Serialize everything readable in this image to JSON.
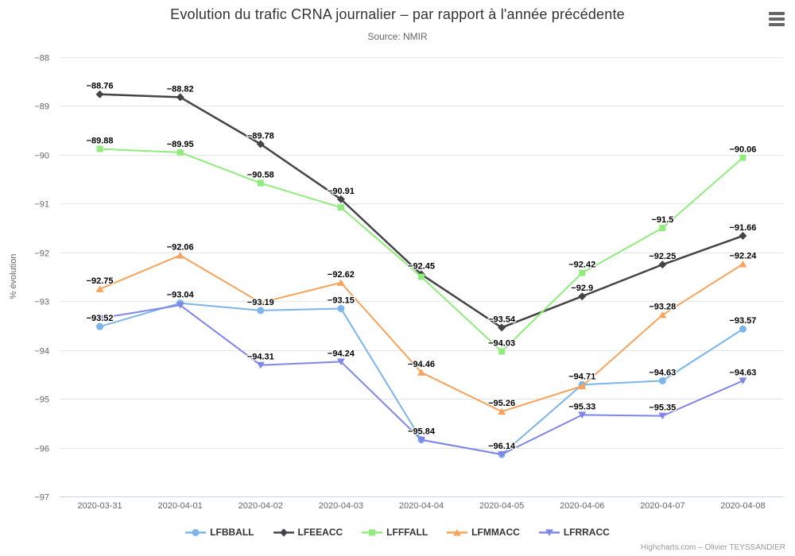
{
  "header": {
    "title": "Evolution du trafic CRNA journalier – par rapport à l'année précédente",
    "subtitle": "Source: NMIR"
  },
  "menu": {
    "icon": "hamburger-menu-icon"
  },
  "credit": {
    "text": "Highcharts.com – Olivier TEYSSANDIER"
  },
  "chart_data": {
    "type": "line",
    "title": "Evolution du trafic CRNA journalier – par rapport à l'année précédente",
    "subtitle": "Source: NMIR",
    "xlabel": "",
    "ylabel": "% évolution",
    "ylim": [
      -97,
      -88
    ],
    "yticks": [
      -88,
      -89,
      -90,
      -91,
      -92,
      -93,
      -94,
      -95,
      -96,
      -97
    ],
    "ytick_labels": [
      "−88",
      "−89",
      "−90",
      "−91",
      "−92",
      "−93",
      "−94",
      "−95",
      "−96",
      "−97"
    ],
    "grid": "horizontal",
    "grid_color": "#e6e6e6",
    "axis_line_color": "#ccd6eb",
    "axis_label_color": "#666666",
    "legend_position": "bottom",
    "x": [
      "2020-03-31",
      "2020-04-01",
      "2020-04-02",
      "2020-04-03",
      "2020-04-04",
      "2020-04-05",
      "2020-04-06",
      "2020-04-07",
      "2020-04-08"
    ],
    "series": [
      {
        "name": "LFBBALL",
        "color": "#7cb5ec",
        "marker": "circle",
        "line_width": 2,
        "values": [
          -93.52,
          -93.04,
          -93.19,
          -93.15,
          -95.84,
          -96.14,
          -94.71,
          -94.63,
          -93.57
        ],
        "labels": [
          "−93.52",
          "−93.04",
          "−93.19",
          "−93.15",
          "−95.84",
          "−96.14",
          "−94.71",
          "−94.63",
          "−93.57"
        ]
      },
      {
        "name": "LFEEACC",
        "color": "#434348",
        "marker": "diamond",
        "line_width": 2.5,
        "values": [
          -88.76,
          -88.82,
          -89.78,
          -90.91,
          -92.45,
          -93.54,
          -92.9,
          -92.25,
          -91.66
        ],
        "labels": [
          "−88.76",
          "−88.82",
          "−89.78",
          "−90.91",
          "−92.45",
          "−93.54",
          "−92.9",
          "−92.25",
          "−91.66"
        ]
      },
      {
        "name": "LFFFALL",
        "color": "#90ed7d",
        "marker": "square",
        "line_width": 2,
        "values": [
          -89.88,
          -89.95,
          -90.58,
          -91.08,
          -92.5,
          -94.03,
          -92.42,
          -91.5,
          -90.06
        ],
        "labels": [
          "−89.88",
          "−89.95",
          "−90.58",
          null,
          null,
          "−94.03",
          "−92.42",
          "−91.5",
          "−90.06"
        ]
      },
      {
        "name": "LFMMACC",
        "color": "#f7a35c",
        "marker": "triangle-up",
        "line_width": 2,
        "values": [
          -92.75,
          -92.06,
          -93.03,
          -92.62,
          -94.46,
          -95.26,
          -94.74,
          -93.28,
          -92.24
        ],
        "labels": [
          "−92.75",
          "−92.06",
          null,
          "−92.62",
          "−94.46",
          "−95.26",
          null,
          "−93.28",
          "−92.24"
        ]
      },
      {
        "name": "LFRRACC",
        "color": "#8085e9",
        "marker": "triangle-down",
        "line_width": 2,
        "values": [
          -93.35,
          -93.08,
          -94.31,
          -94.24,
          -95.84,
          -96.14,
          -95.33,
          -95.35,
          -94.63
        ],
        "labels": [
          null,
          null,
          "−94.31",
          "−94.24",
          null,
          null,
          "−95.33",
          "−95.35",
          "−94.63"
        ]
      }
    ]
  }
}
